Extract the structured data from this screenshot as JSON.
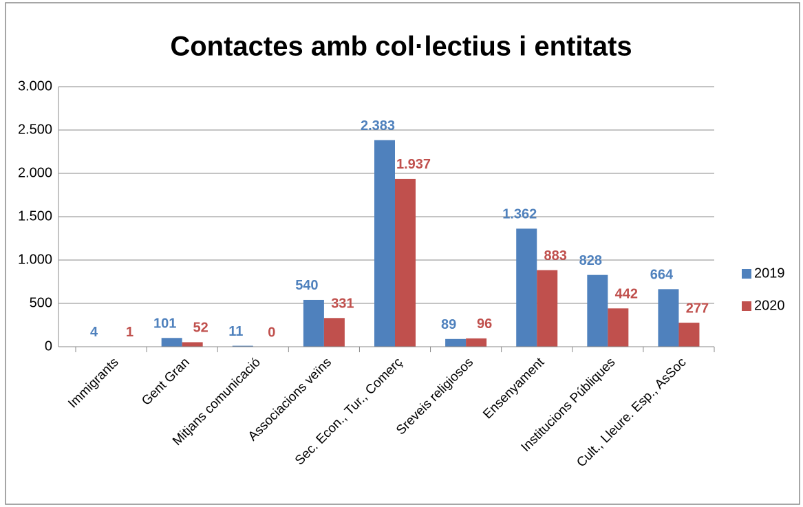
{
  "chart_data": {
    "type": "bar",
    "title": "Contactes amb col·lectius i entitats",
    "categories": [
      "Immigrants",
      "Gent Gran",
      "Mitjans comunicació",
      "Associacions veïns",
      "Sec. Econ., Tur., Comerç",
      "Sreveis religiosos",
      "Ensenyament",
      "Institucions Públiques",
      "Cult., Lleure. Esp., AsSoc"
    ],
    "series": [
      {
        "name": "2019",
        "color": "#4f81bd",
        "values": [
          4,
          101,
          11,
          540,
          2383,
          89,
          1362,
          828,
          664
        ],
        "value_labels": [
          "4",
          "101",
          "11",
          "540",
          "2.383",
          "89",
          "1.362",
          "828",
          "664"
        ]
      },
      {
        "name": "2020",
        "color": "#c0504d",
        "values": [
          1,
          52,
          0,
          331,
          1937,
          96,
          883,
          442,
          277
        ],
        "value_labels": [
          "1",
          "52",
          "0",
          "331",
          "1.937",
          "96",
          "883",
          "442",
          "277"
        ]
      }
    ],
    "ylim": [
      0,
      3000
    ],
    "yticks": [
      0,
      500,
      {
        "value": 1000,
        "label": "1.000"
      },
      {
        "value": 1500,
        "label": "1.500"
      },
      {
        "value": 2000,
        "label": "2.000"
      },
      {
        "value": 2500,
        "label": "2.500"
      },
      {
        "value": 3000,
        "label": "3.000"
      }
    ],
    "grid": true,
    "legend": "right"
  }
}
